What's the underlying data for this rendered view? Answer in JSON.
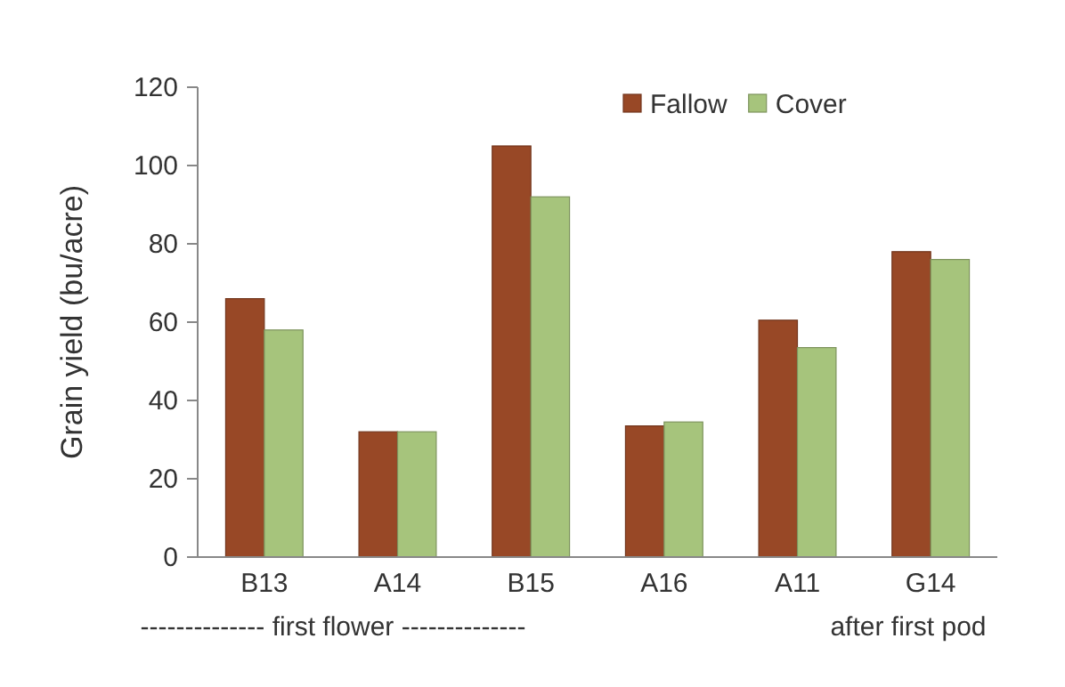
{
  "chart_data": {
    "type": "bar",
    "ylabel": "Grain yield (bu/acre)",
    "categories": [
      "B13",
      "A14",
      "B15",
      "A16",
      "A11",
      "G14"
    ],
    "series": [
      {
        "name": "Fallow",
        "color": "#984826",
        "values": [
          66,
          32,
          105,
          33.5,
          60.5,
          78
        ]
      },
      {
        "name": "Cover",
        "color": "#a6c47c",
        "values": [
          58,
          32,
          92,
          34.5,
          53.5,
          76
        ]
      }
    ],
    "ylim": [
      0,
      120
    ],
    "yticks": [
      0,
      20,
      40,
      60,
      80,
      100,
      120
    ],
    "grid": false,
    "legend": "top right",
    "annotations": [
      "-------------- first flower --------------",
      "after first pod"
    ]
  }
}
